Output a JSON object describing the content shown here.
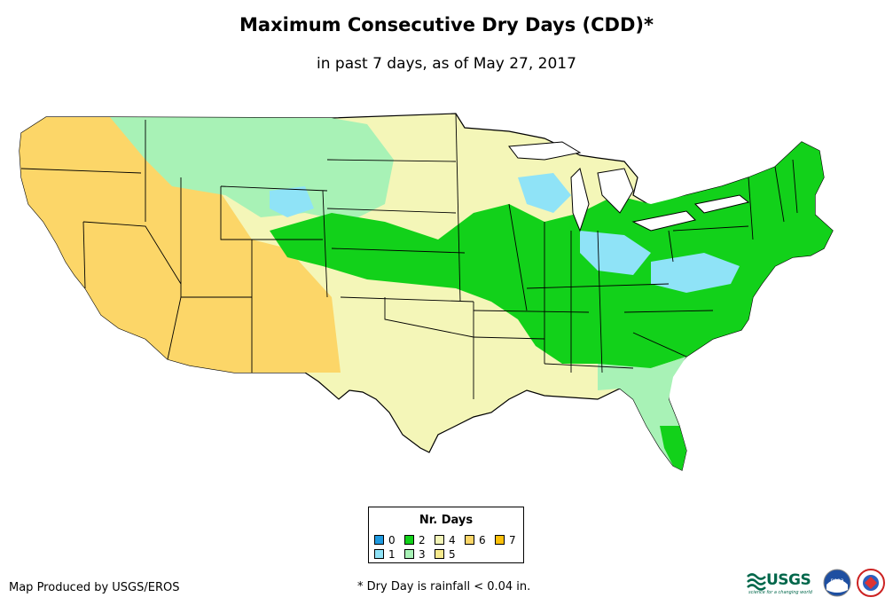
{
  "title": "Maximum Consecutive Dry Days (CDD)*",
  "subtitle": "in past 7 days, as of May 27, 2017",
  "legend": {
    "title": "Nr. Days",
    "items": [
      {
        "label": "0",
        "color": "#1f9ae0"
      },
      {
        "label": "1",
        "color": "#8fe3f7"
      },
      {
        "label": "2",
        "color": "#12d11a"
      },
      {
        "label": "3",
        "color": "#a8f2b6"
      },
      {
        "label": "4",
        "color": "#f4f6b8"
      },
      {
        "label": "5",
        "color": "#f7ea8d"
      },
      {
        "label": "6",
        "color": "#fcd668"
      },
      {
        "label": "7",
        "color": "#fcc00a"
      }
    ]
  },
  "footer": {
    "credit": "Map Produced by USGS/EROS",
    "note": "* Dry Day is rainfall < 0.04 in."
  },
  "logos": {
    "usgs": "USGS",
    "usgs_tagline": "science for a changing world",
    "noaa": "noaa"
  }
}
